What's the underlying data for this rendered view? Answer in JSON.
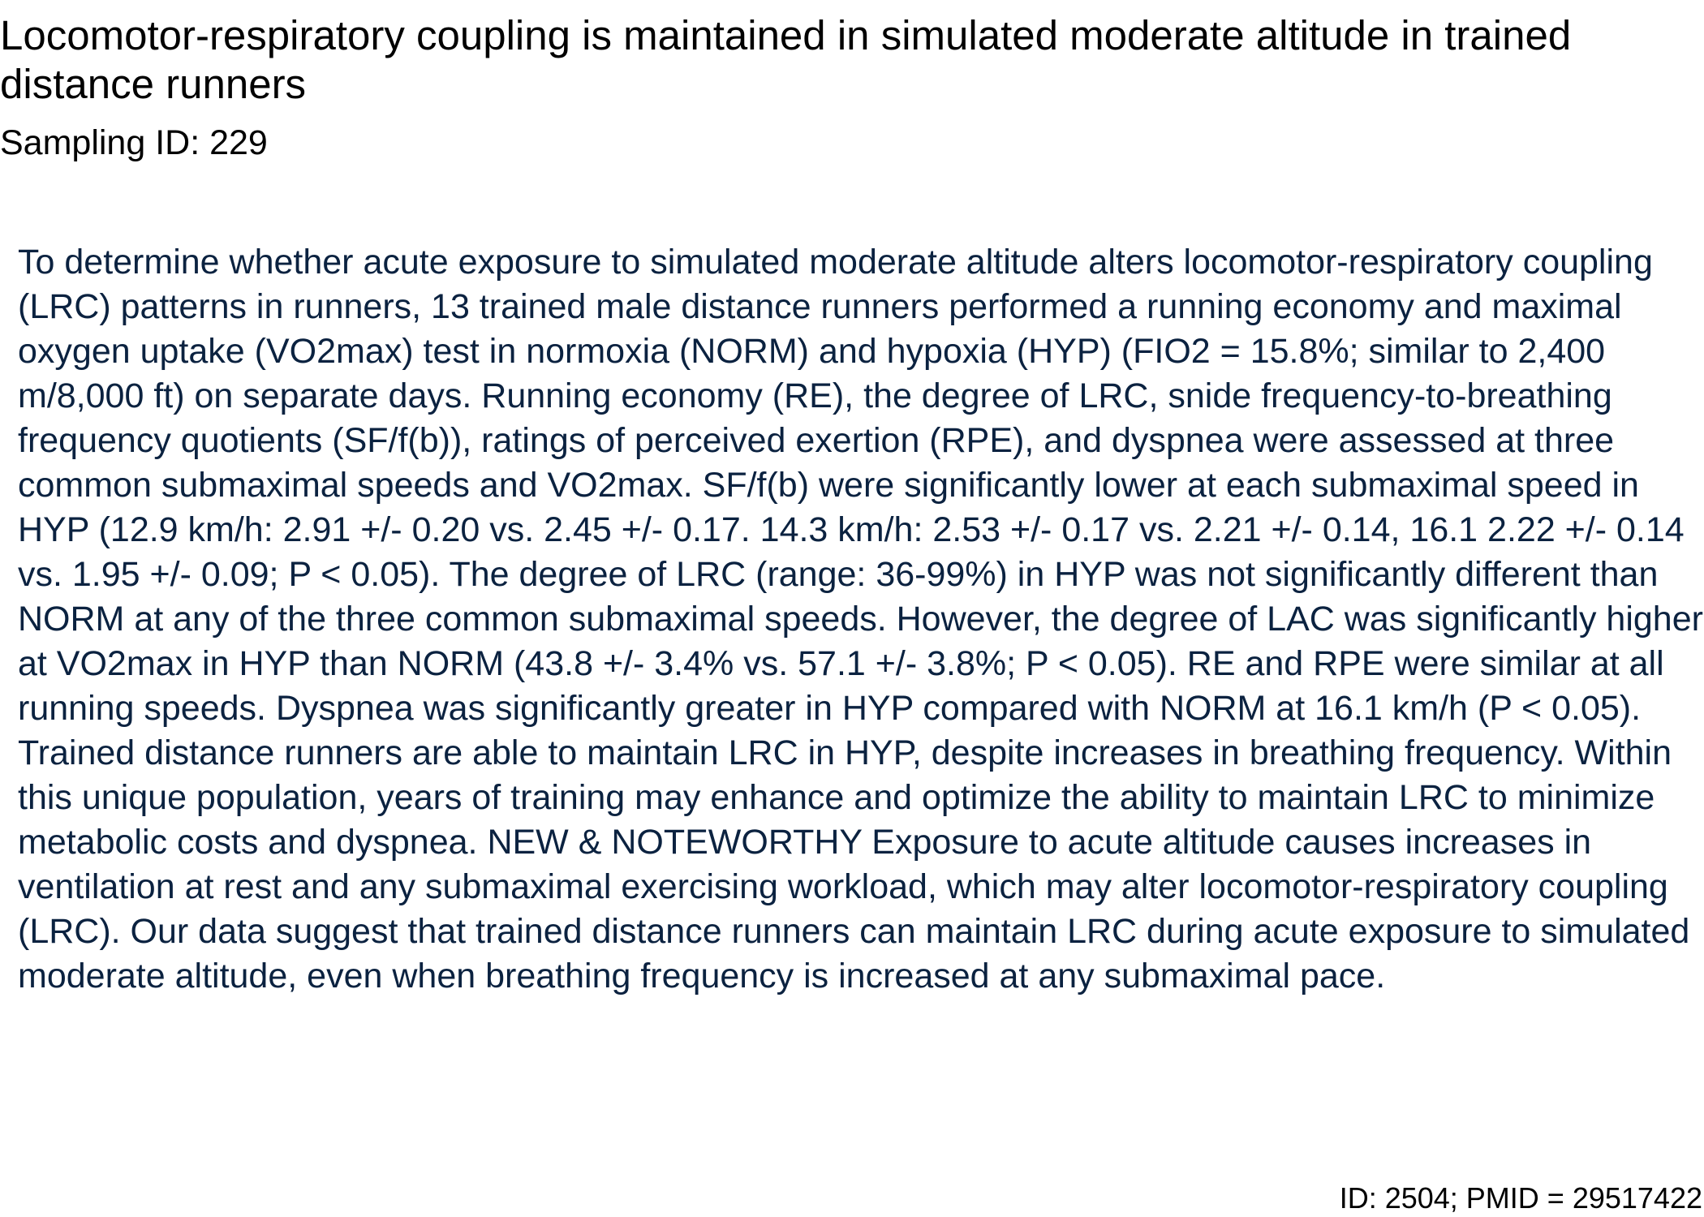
{
  "document": {
    "title": "Locomotor-respiratory coupling is maintained in simulated moderate altitude in trained distance runners",
    "sampling_id": "Sampling ID: 229",
    "abstract": "To determine whether acute exposure to simulated moderate altitude alters locomotor-respiratory coupling (LRC) patterns in runners, 13 trained male distance runners performed a running economy and maximal oxygen uptake (VO2max) test in normoxia (NORM) and hypoxia (HYP) (FIO2 = 15.8%; similar to 2,400 m/8,000 ft) on separate days. Running economy (RE), the degree of LRC, snide frequency-to-breathing frequency quotients (SF/f(b)), ratings of perceived exertion (RPE), and dyspnea were assessed at three common submaximal speeds and VO2max. SF/f(b) were significantly lower at each submaximal speed in HYP (12.9 km/h: 2.91 +/- 0.20 vs. 2.45 +/- 0.17. 14.3 km/h: 2.53 +/- 0.17 vs. 2.21 +/- 0.14, 16.1 2.22 +/- 0.14 vs. 1.95 +/- 0.09; P < 0.05). The degree of LRC (range: 36-99%) in HYP was not significantly different than NORM at any of the three common submaximal speeds. However, the degree of LAC was significantly higher at VO2max in HYP than NORM (43.8 +/- 3.4% vs. 57.1 +/- 3.8%; P < 0.05). RE and RPE were similar at all running speeds. Dyspnea was significantly greater in HYP compared with NORM at 16.1 km/h (P < 0.05). Trained distance runners are able to maintain LRC in HYP, despite increases in breathing frequency. Within this unique population, years of training may enhance and optimize the ability to maintain LRC to minimize metabolic costs and dyspnea. NEW & NOTEWORTHY Exposure to acute altitude causes increases in ventilation at rest and any submaximal exercising workload, which may alter locomotor-respiratory coupling (LRC). Our data suggest that trained distance runners can maintain LRC during acute exposure to simulated moderate altitude, even when breathing frequency is increased at any submaximal pace.",
    "footer": "ID: 2504; PMID = 29517422"
  },
  "colors": {
    "title_text": "#000000",
    "abstract_text": "#0b2240",
    "background": "#ffffff"
  }
}
